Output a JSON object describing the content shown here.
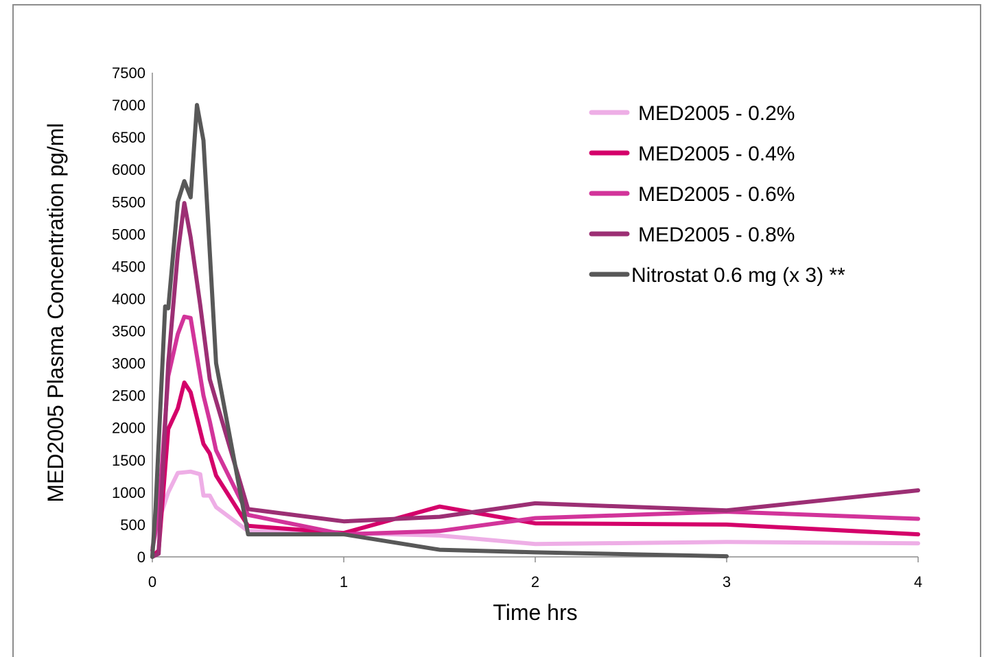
{
  "chart_data": {
    "type": "line",
    "title": "",
    "xlabel": "Time hrs",
    "ylabel": "MED2005 Plasma Concentration pg/ml",
    "xlim": [
      0,
      4
    ],
    "ylim": [
      0,
      7500
    ],
    "x_ticks": [
      "0",
      "1",
      "2",
      "3",
      "4"
    ],
    "y_ticks": [
      "0",
      "500",
      "1000",
      "1500",
      "2000",
      "2500",
      "3000",
      "3500",
      "4000",
      "4500",
      "5000",
      "5500",
      "6000",
      "6500",
      "7000",
      "7500"
    ],
    "grid": false,
    "legend_position": "top-right",
    "series": [
      {
        "name": "MED2005 - 0.2%",
        "color": "#eeaee6",
        "x": [
          0,
          0.033,
          0.083,
          0.133,
          0.167,
          0.2,
          0.25,
          0.267,
          0.3,
          0.333,
          0.5,
          1,
          1.5,
          2,
          3,
          4
        ],
        "y": [
          150,
          550,
          1000,
          1300,
          1310,
          1320,
          1280,
          950,
          950,
          770,
          400,
          370,
          330,
          200,
          230,
          210
        ]
      },
      {
        "name": "MED2005 - 0.4%",
        "color": "#d4006a",
        "x": [
          0,
          0.033,
          0.083,
          0.133,
          0.167,
          0.2,
          0.25,
          0.267,
          0.3,
          0.333,
          0.5,
          1,
          1.5,
          2,
          3,
          4
        ],
        "y": [
          0,
          100,
          1980,
          2300,
          2700,
          2550,
          1950,
          1750,
          1600,
          1260,
          480,
          370,
          780,
          520,
          500,
          350
        ]
      },
      {
        "name": "MED2005 - 0.6%",
        "color": "#d2349a",
        "x": [
          0,
          0.033,
          0.083,
          0.133,
          0.167,
          0.2,
          0.25,
          0.267,
          0.3,
          0.333,
          0.5,
          1,
          1.5,
          2,
          3,
          4
        ],
        "y": [
          100,
          700,
          2800,
          3450,
          3720,
          3700,
          2800,
          2500,
          2100,
          1650,
          650,
          350,
          400,
          600,
          700,
          590
        ]
      },
      {
        "name": "MED2005 - 0.8%",
        "color": "#9c2f74",
        "x": [
          0,
          0.033,
          0.083,
          0.133,
          0.167,
          0.2,
          0.25,
          0.3,
          0.5,
          1,
          1.5,
          2,
          3,
          4
        ],
        "y": [
          0,
          50,
          3000,
          4700,
          5480,
          4950,
          3900,
          2750,
          740,
          550,
          620,
          830,
          720,
          1030
        ]
      },
      {
        "name": "Nitrostat 0.6 mg (x 3) **",
        "color": "#585858",
        "x": [
          0,
          0.017,
          0.067,
          0.083,
          0.133,
          0.167,
          0.2,
          0.233,
          0.267,
          0.333,
          0.5,
          1,
          1.5,
          2,
          3
        ],
        "y": [
          0,
          750,
          3880,
          3850,
          5500,
          5820,
          5570,
          7000,
          6450,
          3000,
          350,
          350,
          110,
          70,
          10
        ]
      }
    ]
  }
}
